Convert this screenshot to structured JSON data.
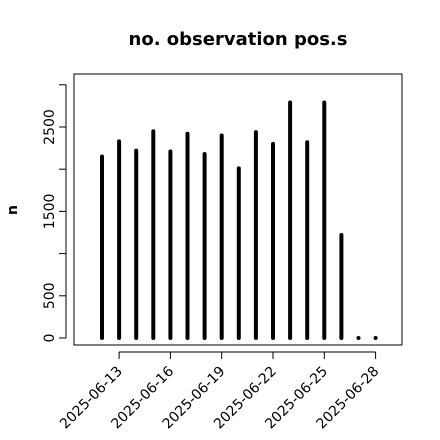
{
  "chart_data": {
    "type": "bar",
    "title": "no. observation pos.s",
    "ylabel": "n",
    "xlabel": "",
    "ylim": [
      -30,
      3000
    ],
    "yticks": [
      0,
      500,
      1500,
      2500
    ],
    "ytick_labels": [
      "0",
      "500",
      "1500",
      "2500"
    ],
    "x": [
      "2025-06-12",
      "2025-06-13",
      "2025-06-14",
      "2025-06-15",
      "2025-06-16",
      "2025-06-17",
      "2025-06-18",
      "2025-06-19",
      "2025-06-20",
      "2025-06-21",
      "2025-06-22",
      "2025-06-23",
      "2025-06-24",
      "2025-06-25",
      "2025-06-26",
      "2025-06-27",
      "2025-06-28"
    ],
    "values": [
      2150,
      2330,
      2220,
      2450,
      2210,
      2420,
      2180,
      2400,
      2010,
      2440,
      2300,
      2790,
      2320,
      2790,
      1220,
      0,
      0
    ],
    "xticks": [
      "2025-06-13",
      "2025-06-16",
      "2025-06-19",
      "2025-06-22",
      "2025-06-25",
      "2025-06-28"
    ],
    "xtick_colors": [
      "#000000",
      "#000000",
      "#228b22",
      "#000000",
      "#000000",
      "#000000"
    ],
    "bar_color": "#000000",
    "grid": false
  }
}
